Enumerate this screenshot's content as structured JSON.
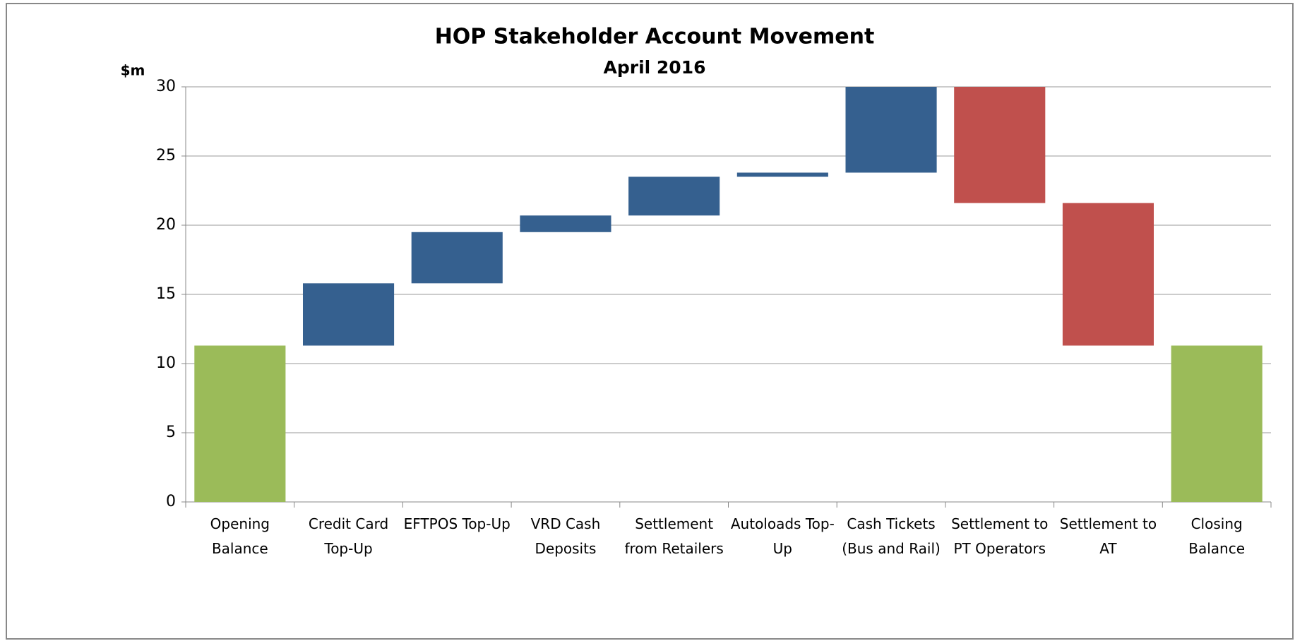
{
  "chart_data": {
    "type": "waterfall",
    "title": "HOP Stakeholder Account Movement",
    "subtitle": "April 2016",
    "y_label": "$m",
    "categories": [
      "Opening Balance",
      "Credit Card Top-Up",
      "EFTPOS Top-Up",
      "VRD Cash Deposits",
      "Settlement from Retailers",
      "Autoloads Top-Up",
      "Cash Tickets (Bus and Rail)",
      "Settlement to PT Operators",
      "Settlement to AT",
      "Closing Balance"
    ],
    "values": [
      11.3,
      4.5,
      3.7,
      1.2,
      2.8,
      0.3,
      8.0,
      -10.2,
      -10.3,
      11.3
    ],
    "totals": [
      true,
      false,
      false,
      false,
      false,
      false,
      false,
      false,
      false,
      true
    ],
    "colors": [
      "#9bbb59",
      "#35608f",
      "#35608f",
      "#35608f",
      "#35608f",
      "#35608f",
      "#35608f",
      "#c0504d",
      "#c0504d",
      "#9bbb59"
    ],
    "ylim": [
      0,
      30
    ],
    "yticks": [
      0,
      5,
      10,
      15,
      20,
      25,
      30
    ],
    "grid": true
  }
}
